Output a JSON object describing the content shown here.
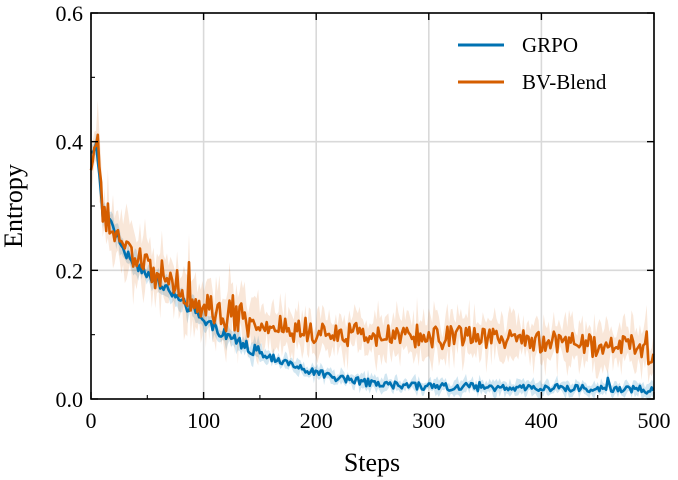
{
  "chart_data": {
    "type": "line",
    "xlabel": "Steps",
    "ylabel": "Entropy",
    "xlim": [
      0,
      500
    ],
    "ylim": [
      0,
      0.6
    ],
    "xticks": [
      "0",
      "100",
      "200",
      "300",
      "400",
      "500"
    ],
    "yticks": [
      "0.0",
      "0.2",
      "0.4",
      "0.6"
    ],
    "grid": true,
    "legend_position": "top-right",
    "series": [
      {
        "name": "GRPO",
        "color": "#0072B2",
        "x": [
          0,
          5,
          10,
          20,
          30,
          40,
          50,
          60,
          70,
          80,
          90,
          100,
          120,
          140,
          160,
          180,
          200,
          220,
          240,
          260,
          280,
          300,
          320,
          340,
          360,
          380,
          400,
          420,
          440,
          460,
          480,
          500
        ],
        "y": [
          0.38,
          0.4,
          0.29,
          0.27,
          0.23,
          0.21,
          0.19,
          0.18,
          0.17,
          0.15,
          0.14,
          0.12,
          0.1,
          0.08,
          0.065,
          0.05,
          0.04,
          0.033,
          0.027,
          0.022,
          0.02,
          0.02,
          0.019,
          0.019,
          0.018,
          0.018,
          0.018,
          0.017,
          0.017,
          0.017,
          0.016,
          0.012
        ]
      },
      {
        "name": "BV-Blend",
        "color": "#D55E00",
        "x": [
          0,
          5,
          10,
          20,
          30,
          40,
          50,
          60,
          70,
          80,
          90,
          100,
          120,
          140,
          160,
          180,
          200,
          220,
          240,
          260,
          280,
          300,
          320,
          340,
          360,
          380,
          400,
          420,
          440,
          460,
          480,
          500
        ],
        "y": [
          0.38,
          0.41,
          0.29,
          0.27,
          0.24,
          0.22,
          0.2,
          0.19,
          0.19,
          0.17,
          0.16,
          0.15,
          0.13,
          0.12,
          0.11,
          0.105,
          0.1,
          0.1,
          0.1,
          0.1,
          0.098,
          0.097,
          0.095,
          0.094,
          0.092,
          0.09,
          0.088,
          0.086,
          0.084,
          0.082,
          0.08,
          0.065
        ]
      }
    ]
  }
}
